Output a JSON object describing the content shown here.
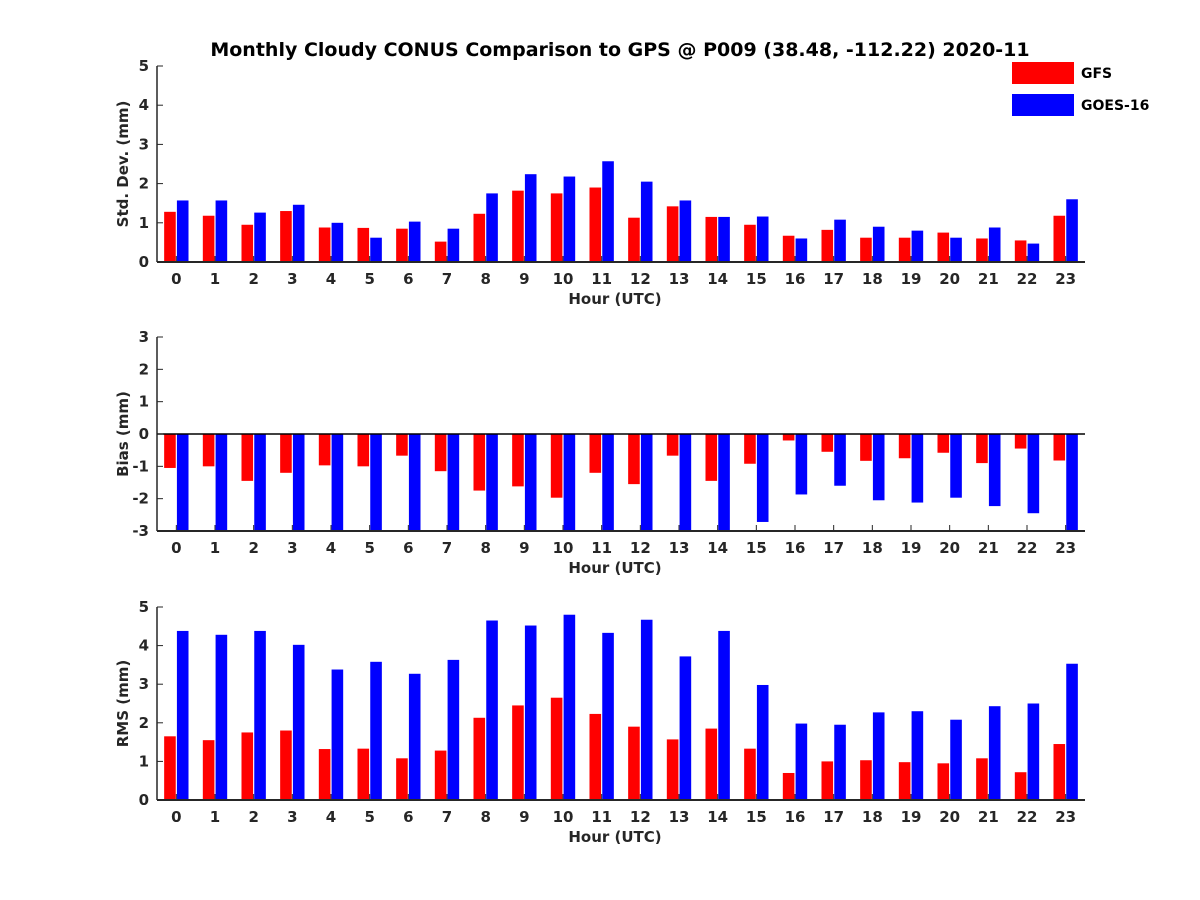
{
  "title": "Monthly Cloudy CONUS Comparison to GPS @ P009 (38.48, -112.22) 2020-11",
  "legend": [
    {
      "label": "GFS",
      "color": "#ff0000"
    },
    {
      "label": "GOES-16",
      "color": "#0000ff"
    }
  ],
  "chart_data": [
    {
      "type": "bar",
      "title": "Monthly Cloudy CONUS Comparison to GPS @ P009 (38.48, -112.22) 2020-11",
      "xlabel": "Hour (UTC)",
      "ylabel": "Std. Dev. (mm)",
      "ylim": [
        0,
        5
      ],
      "yticks": [
        "0",
        "1",
        "2",
        "3",
        "4",
        "5"
      ],
      "categories": [
        "0",
        "1",
        "2",
        "3",
        "4",
        "5",
        "6",
        "7",
        "8",
        "9",
        "10",
        "11",
        "12",
        "13",
        "14",
        "15",
        "16",
        "17",
        "18",
        "19",
        "20",
        "21",
        "22",
        "23"
      ],
      "legend_position": "top-right",
      "series": [
        {
          "name": "GFS",
          "color": "#ff0000",
          "values": [
            1.28,
            1.18,
            0.95,
            1.3,
            0.88,
            0.87,
            0.85,
            0.52,
            1.23,
            1.82,
            1.75,
            1.9,
            1.13,
            1.42,
            1.15,
            0.95,
            0.67,
            0.82,
            0.62,
            0.62,
            0.75,
            0.6,
            0.55,
            1.18
          ]
        },
        {
          "name": "GOES-16",
          "color": "#0000ff",
          "values": [
            1.57,
            1.57,
            1.26,
            1.46,
            1.0,
            0.62,
            1.03,
            0.85,
            1.75,
            2.24,
            2.18,
            2.57,
            2.05,
            1.57,
            1.15,
            1.16,
            0.6,
            1.08,
            0.9,
            0.8,
            0.62,
            0.88,
            0.47,
            1.6
          ]
        }
      ]
    },
    {
      "type": "bar",
      "xlabel": "Hour (UTC)",
      "ylabel": "Bias (mm)",
      "ylim": [
        -3,
        3
      ],
      "yticks": [
        "-3",
        "-2",
        "-1",
        "0",
        "1",
        "2",
        "3"
      ],
      "categories": [
        "0",
        "1",
        "2",
        "3",
        "4",
        "5",
        "6",
        "7",
        "8",
        "9",
        "10",
        "11",
        "12",
        "13",
        "14",
        "15",
        "16",
        "17",
        "18",
        "19",
        "20",
        "21",
        "22",
        "23"
      ],
      "series": [
        {
          "name": "GFS",
          "color": "#ff0000",
          "values": [
            -1.05,
            -1.0,
            -1.45,
            -1.2,
            -0.97,
            -1.0,
            -0.67,
            -1.15,
            -1.75,
            -1.62,
            -1.97,
            -1.2,
            -1.55,
            -0.67,
            -1.45,
            -0.92,
            -0.2,
            -0.55,
            -0.83,
            -0.75,
            -0.58,
            -0.9,
            -0.45,
            -0.82
          ]
        },
        {
          "name": "GOES-16",
          "color": "#0000ff",
          "values": [
            -3.0,
            -3.0,
            -3.0,
            -3.0,
            -3.0,
            -3.0,
            -3.0,
            -3.0,
            -3.0,
            -3.0,
            -3.0,
            -3.0,
            -3.0,
            -3.0,
            -3.0,
            -2.72,
            -1.87,
            -1.6,
            -2.05,
            -2.12,
            -1.97,
            -2.23,
            -2.45,
            -3.0
          ]
        }
      ]
    },
    {
      "type": "bar",
      "xlabel": "Hour (UTC)",
      "ylabel": "RMS (mm)",
      "ylim": [
        0,
        5
      ],
      "yticks": [
        "0",
        "1",
        "2",
        "3",
        "4",
        "5"
      ],
      "categories": [
        "0",
        "1",
        "2",
        "3",
        "4",
        "5",
        "6",
        "7",
        "8",
        "9",
        "10",
        "11",
        "12",
        "13",
        "14",
        "15",
        "16",
        "17",
        "18",
        "19",
        "20",
        "21",
        "22",
        "23"
      ],
      "series": [
        {
          "name": "GFS",
          "color": "#ff0000",
          "values": [
            1.65,
            1.55,
            1.75,
            1.8,
            1.32,
            1.33,
            1.08,
            1.28,
            2.13,
            2.45,
            2.65,
            2.23,
            1.9,
            1.57,
            1.85,
            1.33,
            0.7,
            1.0,
            1.03,
            0.98,
            0.95,
            1.08,
            0.72,
            1.45
          ]
        },
        {
          "name": "GOES-16",
          "color": "#0000ff",
          "values": [
            4.38,
            4.28,
            4.38,
            4.02,
            3.38,
            3.58,
            3.27,
            3.63,
            4.65,
            4.52,
            4.8,
            4.33,
            4.67,
            3.72,
            4.38,
            2.98,
            1.98,
            1.95,
            2.27,
            2.3,
            2.08,
            2.43,
            2.5,
            3.53
          ]
        }
      ]
    }
  ]
}
